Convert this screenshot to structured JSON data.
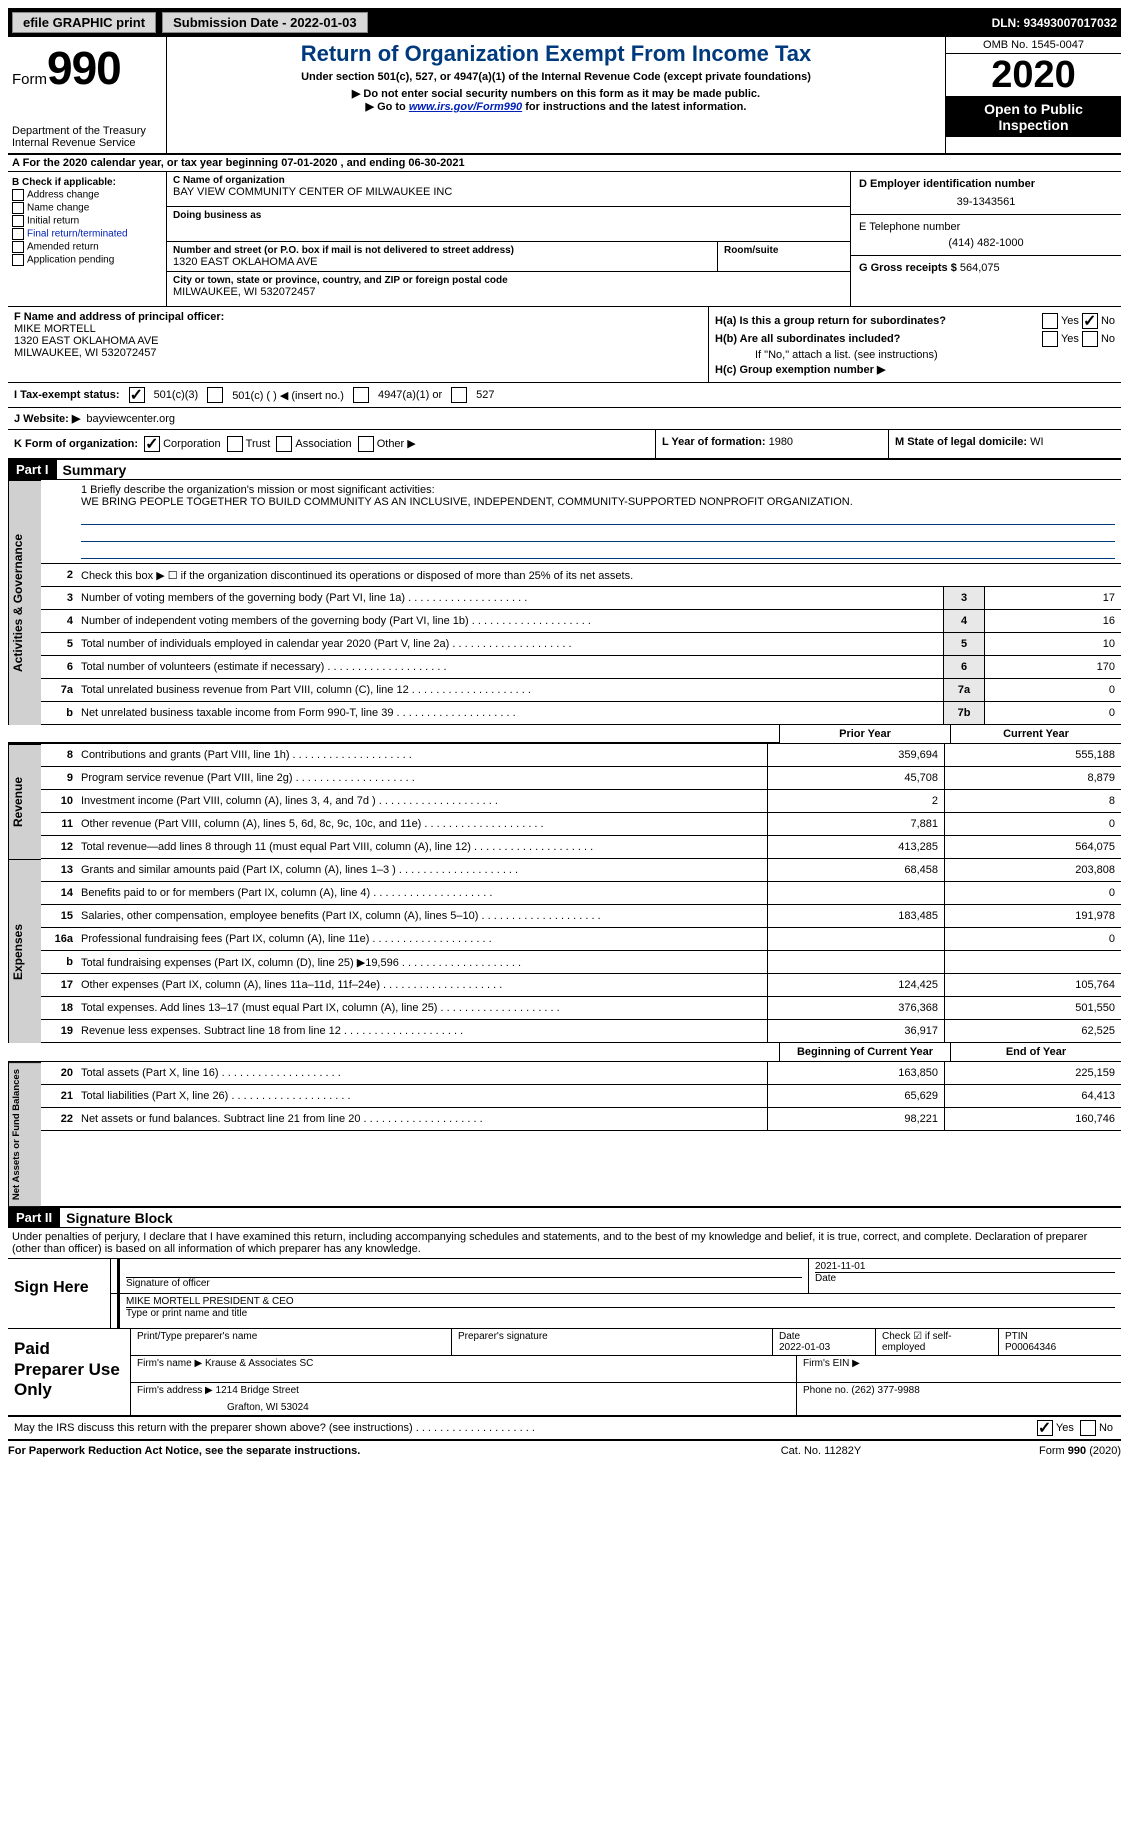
{
  "topbar": {
    "efile": "efile GRAPHIC print",
    "submission_label": "Submission Date - 2022-01-03",
    "dln": "DLN: 93493007017032"
  },
  "header": {
    "form_prefix": "Form",
    "form_num": "990",
    "dept1": "Department of the Treasury",
    "dept2": "Internal Revenue Service",
    "title": "Return of Organization Exempt From Income Tax",
    "sub1": "Under section 501(c), 527, or 4947(a)(1) of the Internal Revenue Code (except private foundations)",
    "sub2": "▶ Do not enter social security numbers on this form as it may be made public.",
    "sub3_pre": "▶ Go to ",
    "sub3_link": "www.irs.gov/Form990",
    "sub3_post": " for instructions and the latest information.",
    "omb": "OMB No. 1545-0047",
    "year": "2020",
    "inspect1": "Open to Public",
    "inspect2": "Inspection"
  },
  "row_a": "For the 2020 calendar year, or tax year beginning 07-01-2020   , and ending 06-30-2021",
  "b": {
    "label": "B Check if applicable:",
    "opts": [
      "Address change",
      "Name change",
      "Initial return",
      "Final return/terminated",
      "Amended return",
      "Application pending"
    ]
  },
  "c": {
    "name_label": "C Name of organization",
    "name": "BAY VIEW COMMUNITY CENTER OF MILWAUKEE INC",
    "dba_label": "Doing business as",
    "dba": "",
    "street_label": "Number and street (or P.O. box if mail is not delivered to street address)",
    "street": "1320 EAST OKLAHOMA AVE",
    "room_label": "Room/suite",
    "city_label": "City or town, state or province, country, and ZIP or foreign postal code",
    "city": "MILWAUKEE, WI   532072457"
  },
  "d": {
    "ein_label": "D Employer identification number",
    "ein": "39-1343561",
    "phone_label": "E Telephone number",
    "phone": "(414) 482-1000",
    "gross_label": "G Gross receipts $",
    "gross": "564,075"
  },
  "f": {
    "label": "F Name and address of principal officer:",
    "name": "MIKE MORTELL",
    "street": "1320 EAST OKLAHOMA AVE",
    "city": "MILWAUKEE, WI   532072457"
  },
  "h": {
    "a_label": "H(a)  Is this a group return for subordinates?",
    "b_label": "H(b)  Are all subordinates included?",
    "b_note": "If \"No,\" attach a list. (see instructions)",
    "c_label": "H(c)  Group exemption number ▶",
    "yes": "Yes",
    "no": "No"
  },
  "i": {
    "label": "I   Tax-exempt status:",
    "o1": "501(c)(3)",
    "o2": "501(c) (   ) ◀ (insert no.)",
    "o3": "4947(a)(1) or",
    "o4": "527"
  },
  "j": {
    "label": "J   Website: ▶",
    "val": "bayviewcenter.org"
  },
  "k": {
    "label": "K Form of organization:",
    "o1": "Corporation",
    "o2": "Trust",
    "o3": "Association",
    "o4": "Other ▶",
    "l_label": "L Year of formation:",
    "l_val": "1980",
    "m_label": "M State of legal domicile:",
    "m_val": "WI"
  },
  "part1": {
    "header": "Part I",
    "title": "Summary"
  },
  "mission": {
    "prompt": "1   Briefly describe the organization's mission or most significant activities:",
    "text": "WE BRING PEOPLE TOGETHER TO BUILD COMMUNITY AS AN INCLUSIVE, INDEPENDENT, COMMUNITY-SUPPORTED NONPROFIT ORGANIZATION."
  },
  "gov_lines": [
    {
      "n": "2",
      "desc": "Check this box ▶ ☐  if the organization discontinued its operations or disposed of more than 25% of its net assets.",
      "box": "",
      "v": ""
    },
    {
      "n": "3",
      "desc": "Number of voting members of the governing body (Part VI, line 1a)",
      "box": "3",
      "v": "17"
    },
    {
      "n": "4",
      "desc": "Number of independent voting members of the governing body (Part VI, line 1b)",
      "box": "4",
      "v": "16"
    },
    {
      "n": "5",
      "desc": "Total number of individuals employed in calendar year 2020 (Part V, line 2a)",
      "box": "5",
      "v": "10"
    },
    {
      "n": "6",
      "desc": "Total number of volunteers (estimate if necessary)",
      "box": "6",
      "v": "170"
    },
    {
      "n": "7a",
      "desc": "Total unrelated business revenue from Part VIII, column (C), line 12",
      "box": "7a",
      "v": "0"
    },
    {
      "n": "b",
      "desc": "Net unrelated business taxable income from Form 990-T, line 39",
      "box": "7b",
      "v": "0"
    }
  ],
  "col_headers": {
    "prior": "Prior Year",
    "current": "Current Year"
  },
  "revenue": [
    {
      "n": "8",
      "desc": "Contributions and grants (Part VIII, line 1h)",
      "p": "359,694",
      "c": "555,188"
    },
    {
      "n": "9",
      "desc": "Program service revenue (Part VIII, line 2g)",
      "p": "45,708",
      "c": "8,879"
    },
    {
      "n": "10",
      "desc": "Investment income (Part VIII, column (A), lines 3, 4, and 7d )",
      "p": "2",
      "c": "8"
    },
    {
      "n": "11",
      "desc": "Other revenue (Part VIII, column (A), lines 5, 6d, 8c, 9c, 10c, and 11e)",
      "p": "7,881",
      "c": "0"
    },
    {
      "n": "12",
      "desc": "Total revenue—add lines 8 through 11 (must equal Part VIII, column (A), line 12)",
      "p": "413,285",
      "c": "564,075"
    }
  ],
  "expenses": [
    {
      "n": "13",
      "desc": "Grants and similar amounts paid (Part IX, column (A), lines 1–3 )",
      "p": "68,458",
      "c": "203,808"
    },
    {
      "n": "14",
      "desc": "Benefits paid to or for members (Part IX, column (A), line 4)",
      "p": "",
      "c": "0"
    },
    {
      "n": "15",
      "desc": "Salaries, other compensation, employee benefits (Part IX, column (A), lines 5–10)",
      "p": "183,485",
      "c": "191,978"
    },
    {
      "n": "16a",
      "desc": "Professional fundraising fees (Part IX, column (A), line 11e)",
      "p": "",
      "c": "0"
    },
    {
      "n": "b",
      "desc": "Total fundraising expenses (Part IX, column (D), line 25) ▶19,596",
      "p": "SHADE",
      "c": "SHADE"
    },
    {
      "n": "17",
      "desc": "Other expenses (Part IX, column (A), lines 11a–11d, 11f–24e)",
      "p": "124,425",
      "c": "105,764"
    },
    {
      "n": "18",
      "desc": "Total expenses. Add lines 13–17 (must equal Part IX, column (A), line 25)",
      "p": "376,368",
      "c": "501,550"
    },
    {
      "n": "19",
      "desc": "Revenue less expenses. Subtract line 18 from line 12",
      "p": "36,917",
      "c": "62,525"
    }
  ],
  "bal_headers": {
    "begin": "Beginning of Current Year",
    "end": "End of Year"
  },
  "balances": [
    {
      "n": "20",
      "desc": "Total assets (Part X, line 16)",
      "p": "163,850",
      "c": "225,159"
    },
    {
      "n": "21",
      "desc": "Total liabilities (Part X, line 26)",
      "p": "65,629",
      "c": "64,413"
    },
    {
      "n": "22",
      "desc": "Net assets or fund balances. Subtract line 21 from line 20",
      "p": "98,221",
      "c": "160,746"
    }
  ],
  "part2": {
    "header": "Part II",
    "title": "Signature Block"
  },
  "penalties": "Under penalties of perjury, I declare that I have examined this return, including accompanying schedules and statements, and to the best of my knowledge and belief, it is true, correct, and complete. Declaration of preparer (other than officer) is based on all information of which preparer has any knowledge.",
  "sign": {
    "here": "Sign Here",
    "sig_label": "Signature of officer",
    "date_label": "Date",
    "date": "2021-11-01",
    "name": "MIKE MORTELL  PRESIDENT & CEO",
    "name_label": "Type or print name and title"
  },
  "paid": {
    "label": "Paid Preparer Use Only",
    "col1": "Print/Type preparer's name",
    "col2": "Preparer's signature",
    "col3_l": "Date",
    "col3_v": "2022-01-03",
    "col4_l": "Check ☑ if self-employed",
    "col5_l": "PTIN",
    "col5_v": "P00064346",
    "firm_name_l": "Firm's name    ▶",
    "firm_name": "Krause & Associates SC",
    "firm_ein_l": "Firm's EIN ▶",
    "firm_addr_l": "Firm's address ▶",
    "firm_addr1": "1214 Bridge Street",
    "firm_addr2": "Grafton, WI  53024",
    "firm_phone_l": "Phone no.",
    "firm_phone": "(262) 377-9988"
  },
  "discuss": {
    "q": "May the IRS discuss this return with the preparer shown above? (see instructions)",
    "yes": "Yes",
    "no": "No"
  },
  "footer": {
    "f1": "For Paperwork Reduction Act Notice, see the separate instructions.",
    "f2": "Cat. No. 11282Y",
    "f3": "Form 990 (2020)"
  },
  "vlabels": {
    "gov": "Activities & Governance",
    "rev": "Revenue",
    "exp": "Expenses",
    "bal": "Net Assets or Fund Balances"
  }
}
